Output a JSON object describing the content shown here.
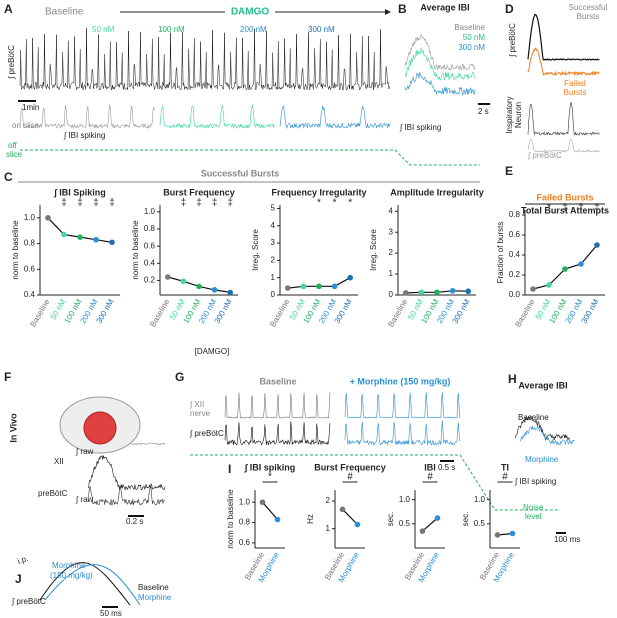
{
  "labels": {
    "A": "A",
    "A_baseline": "Baseline",
    "A_damgo": "DAMGO",
    "A_50": "50 nM",
    "A_100": "100 nM",
    "A_200": "200 nM",
    "A_300": "300 nM",
    "A_prebotc": "∫ preBötC",
    "A_1min": "1min",
    "A_on": "on slice",
    "A_off": "off",
    "A_slice": "slice",
    "A_ibi": "∫ IBI spiking",
    "B": "B",
    "B_title": "Average IBI",
    "B_base": "Baseline",
    "B_50": "50 nM",
    "B_300": "300 nM",
    "B_2s": "2 s",
    "B_ibi": "∫ IBI spiking",
    "D": "D",
    "D_succ": "Successful",
    "D_succ2": "Bursts",
    "D_prebotc": "∫ preBötC",
    "D_fail": "Failed",
    "D_fail2": "Bursts",
    "D_insp": "Inspiratory",
    "D_insp2": "Neuron",
    "D_prebotc2": "∫ preBötC",
    "C": "C",
    "C_header": "Successful Bursts",
    "C_xlabel": "[DAMGO]",
    "E": "E",
    "F": "F",
    "F_invivo": "In Vivo",
    "F_xii": "XII",
    "F_raw1": "∫ raw",
    "F_prebotc": "preBötC",
    "F_raw2": "∫ raw",
    "F_02s": "0.2 s",
    "F_ip": "i.p.",
    "F_morph": "Morphine",
    "F_dose": "(150 mg/kg)",
    "G": "G",
    "G_base": "Baseline",
    "G_morph": "+ Morphine (150 mg/kg)",
    "G_xii": "∫ XII",
    "G_nerve": "nerve",
    "G_prebotc": "∫ preBötC",
    "G_05s": "0.5 s",
    "H": "H",
    "H_title": "Average IBI",
    "H_base": "Baseline",
    "H_morph": "Morphine",
    "H_ibi": "∫ IBI spiking",
    "H_noise": "Noise",
    "H_level": "level",
    "H_100": "100 ms",
    "I": "I",
    "J": "J",
    "J_base": "Baseline",
    "J_morph": "Morphine",
    "J_prebotc": "∫ preBötC",
    "J_50": "50 ms"
  },
  "chart_data": [
    {
      "type": "line",
      "title": "∫ IBI Spiking",
      "ylabel": "norm to baseline",
      "categories": [
        "Baseline",
        "50 nM",
        "100 nM",
        "200 nM",
        "300 nM"
      ],
      "category_colors": [
        "#777777",
        "#3fd6a4",
        "#22b060",
        "#2a8fd6",
        "#1d6fb8"
      ],
      "values": [
        1.0,
        0.87,
        0.85,
        0.83,
        0.81
      ],
      "annotations": [
        null,
        "‡",
        "‡",
        "‡",
        "‡"
      ],
      "ylim": [
        0.4,
        1.1
      ],
      "yticks": [
        0.4,
        0.6,
        0.8,
        {
          "value": 1,
          "label": "1.0"
        }
      ]
    },
    {
      "type": "line",
      "title": "Burst Frequency",
      "ylabel": "norm to baseline",
      "categories": [
        "Baseline",
        "50 nM",
        "100 nM",
        "200 nM",
        "300 nM"
      ],
      "category_colors": [
        "#777777",
        "#3fd6a4",
        "#22b060",
        "#2a8fd6",
        "#1d6fb8"
      ],
      "values": [
        0.24,
        0.19,
        0.13,
        0.09,
        0.06
      ],
      "annotations": [
        null,
        "‡",
        "‡",
        "‡",
        "‡"
      ],
      "ylim": [
        0.03,
        1.08
      ],
      "yticks": [
        0.2,
        0.4,
        0.6,
        0.8,
        {
          "value": 1,
          "label": "1.0"
        }
      ]
    },
    {
      "type": "line",
      "title": "Frequency Irregularity",
      "ylabel": "Irreg. Score",
      "categories": [
        "Baseline",
        "50 nM",
        "100 nM",
        "200 nM",
        "300 nM"
      ],
      "category_colors": [
        "#777777",
        "#3fd6a4",
        "#22b060",
        "#2a8fd6",
        "#1d6fb8"
      ],
      "values": [
        0.4,
        0.5,
        0.5,
        0.5,
        1.0
      ],
      "annotations": [
        null,
        null,
        "*",
        "*",
        "*"
      ],
      "ylim": [
        0,
        5.2
      ],
      "yticks": [
        0,
        1,
        2,
        3,
        4,
        5
      ]
    },
    {
      "type": "line",
      "title": "Amplitude Irregularity",
      "ylabel": "Irreg. Score",
      "categories": [
        "Baseline",
        "50 nM",
        "100 nM",
        "200 nM",
        "300 nM"
      ],
      "category_colors": [
        "#777777",
        "#3fd6a4",
        "#22b060",
        "#2a8fd6",
        "#1d6fb8"
      ],
      "values": [
        0.1,
        0.13,
        0.13,
        0.2,
        0.18
      ],
      "annotations": [
        null,
        null,
        null,
        null,
        null
      ],
      "ylim": [
        0,
        4.3
      ],
      "yticks": [
        0,
        1,
        2,
        3,
        4
      ]
    },
    {
      "type": "line",
      "title": "Failed Bursts",
      "subtitle": "Total Burst Attempts",
      "ylabel": "Fraction of bursts",
      "categories": [
        "Baseline",
        "50 nM",
        "100 nM",
        "200 nM",
        "300 nM"
      ],
      "category_colors": [
        "#777777",
        "#3fd6a4",
        "#22b060",
        "#2a8fd6",
        "#1d6fb8"
      ],
      "values": [
        0.06,
        0.1,
        0.26,
        0.31,
        0.5
      ],
      "annotations": [
        null,
        "*",
        "‡",
        "†",
        "‡"
      ],
      "ylim": [
        0,
        0.85
      ],
      "yticks": [
        {
          "value": 0,
          "label": "0.0"
        },
        0.2,
        0.4,
        0.6,
        0.8
      ]
    },
    {
      "type": "line",
      "title": "∫ IBI spiking",
      "ylabel": "norm to baseline",
      "categories": [
        "Baseline",
        "Morphine"
      ],
      "category_colors": [
        "#777777",
        "#2a8fd6"
      ],
      "values": [
        1.0,
        0.83
      ],
      "annotations": [
        "*"
      ],
      "ylim": [
        0.55,
        1.12
      ],
      "yticks": [
        0.6,
        0.8,
        {
          "value": 1,
          "label": "1.0"
        }
      ]
    },
    {
      "type": "line",
      "title": "Burst Frequency",
      "ylabel": "Hz",
      "categories": [
        "Baseline",
        "Morphine"
      ],
      "category_colors": [
        "#777777",
        "#2a8fd6"
      ],
      "values": [
        1.7,
        1.15
      ],
      "annotations": [
        "#"
      ],
      "ylim": [
        0.3,
        2.4
      ],
      "yticks": [
        1,
        2
      ]
    },
    {
      "type": "line",
      "title": "IBI",
      "ylabel": "sec.",
      "categories": [
        "Baseline",
        "Morphine"
      ],
      "category_colors": [
        "#777777",
        "#2a8fd6"
      ],
      "values": [
        0.35,
        0.62
      ],
      "annotations": [
        "#"
      ],
      "ylim": [
        0,
        1.2
      ],
      "yticks": [
        0.5,
        {
          "value": 1,
          "label": "1.0"
        }
      ]
    },
    {
      "type": "line",
      "title": "TI",
      "ylabel": "sec.",
      "categories": [
        "Baseline",
        "Morphine"
      ],
      "category_colors": [
        "#777777",
        "#2a8fd6"
      ],
      "values": [
        0.27,
        0.3
      ],
      "annotations": [
        "#"
      ],
      "ylim": [
        0,
        1.2
      ],
      "yticks": [
        0.5,
        {
          "value": 1,
          "label": "1.0"
        }
      ]
    }
  ]
}
